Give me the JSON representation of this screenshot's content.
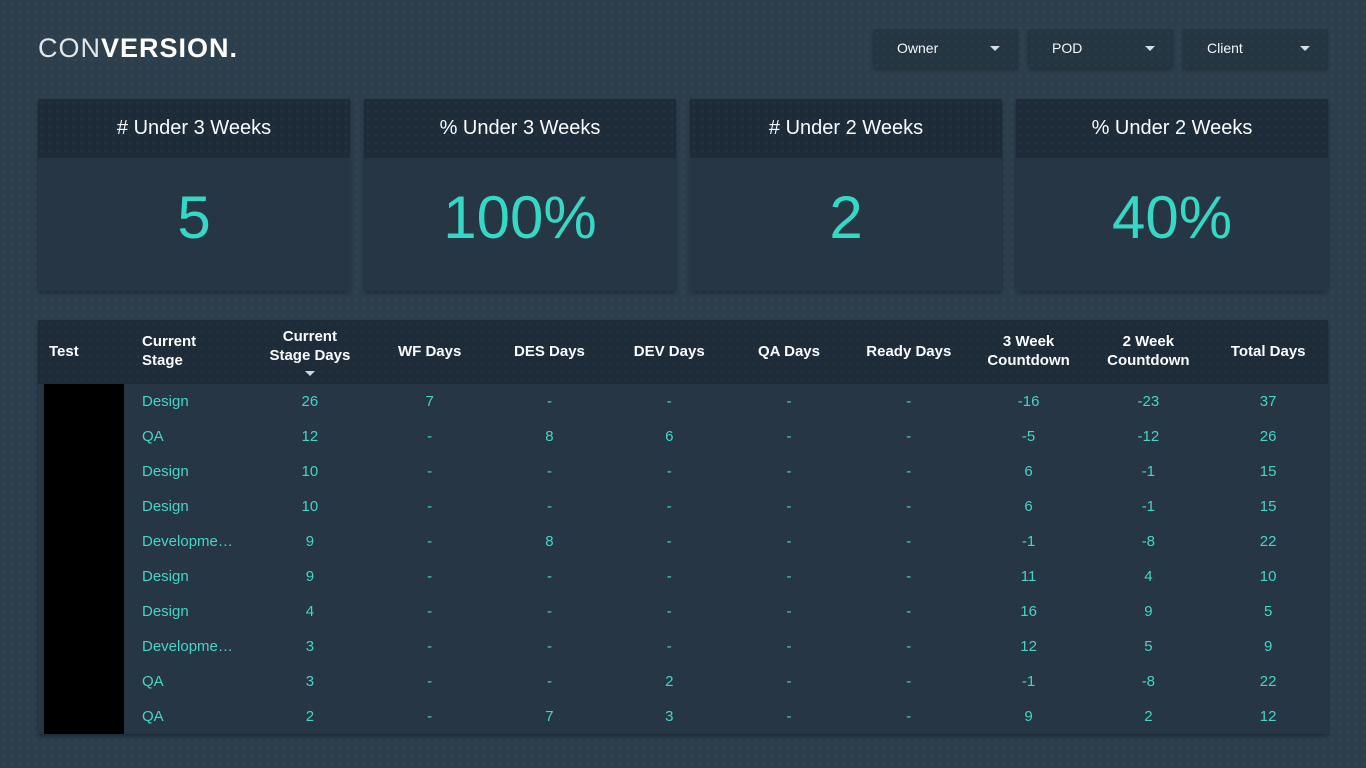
{
  "brand": {
    "light": "CON",
    "bold": "VERSION."
  },
  "filters": [
    {
      "label": "Owner"
    },
    {
      "label": "POD"
    },
    {
      "label": "Client"
    }
  ],
  "kpis": [
    {
      "title": "# Under 3 Weeks",
      "value": "5"
    },
    {
      "title": "% Under 3 Weeks",
      "value": "100%"
    },
    {
      "title": "# Under 2 Weeks",
      "value": "2"
    },
    {
      "title": "% Under 2 Weeks",
      "value": "40%"
    }
  ],
  "table": {
    "columns": [
      {
        "label": "Test",
        "key": "test"
      },
      {
        "label": "Current\nStage",
        "key": "current_stage"
      },
      {
        "label": "Current\nStage Days",
        "key": "current_stage_days"
      },
      {
        "label": "WF Days",
        "key": "wf_days"
      },
      {
        "label": "DES Days",
        "key": "des_days"
      },
      {
        "label": "DEV Days",
        "key": "dev_days"
      },
      {
        "label": "QA Days",
        "key": "qa_days"
      },
      {
        "label": "Ready Days",
        "key": "ready_days"
      },
      {
        "label": "3 Week\nCountdown",
        "key": "three_week_countdown"
      },
      {
        "label": "2 Week\nCountdown",
        "key": "two_week_countdown"
      },
      {
        "label": "Total Days",
        "key": "total_days"
      }
    ],
    "sort": {
      "column": "Current Stage Days",
      "column_index": 2,
      "direction": "desc"
    },
    "rows": [
      {
        "cells": [
          "",
          "Design",
          "26",
          "7",
          "-",
          "-",
          "-",
          "-",
          "-16",
          "-23",
          "37"
        ]
      },
      {
        "cells": [
          "",
          "QA",
          "12",
          "-",
          "8",
          "6",
          "-",
          "-",
          "-5",
          "-12",
          "26"
        ]
      },
      {
        "cells": [
          "",
          "Design",
          "10",
          "-",
          "-",
          "-",
          "-",
          "-",
          "6",
          "-1",
          "15"
        ]
      },
      {
        "cells": [
          "",
          "Design",
          "10",
          "-",
          "-",
          "-",
          "-",
          "-",
          "6",
          "-1",
          "15"
        ]
      },
      {
        "cells": [
          "",
          "Developme…",
          "9",
          "-",
          "8",
          "-",
          "-",
          "-",
          "-1",
          "-8",
          "22"
        ]
      },
      {
        "cells": [
          "",
          "Design",
          "9",
          "-",
          "-",
          "-",
          "-",
          "-",
          "11",
          "4",
          "10"
        ]
      },
      {
        "cells": [
          "",
          "Design",
          "4",
          "-",
          "-",
          "-",
          "-",
          "-",
          "16",
          "9",
          "5"
        ]
      },
      {
        "cells": [
          "",
          "Developme…",
          "3",
          "-",
          "-",
          "-",
          "-",
          "-",
          "12",
          "5",
          "9"
        ]
      },
      {
        "cells": [
          "",
          "QA",
          "3",
          "-",
          "-",
          "2",
          "-",
          "-",
          "-1",
          "-8",
          "22"
        ]
      },
      {
        "cells": [
          "",
          "QA",
          "2",
          "-",
          "7",
          "3",
          "-",
          "-",
          "9",
          "2",
          "12"
        ]
      }
    ]
  },
  "colors": {
    "accent_teal": "#35d8c5",
    "page_bg": "#2d3e4d",
    "panel_bg": "#263644",
    "header_strip_bg": "#1e2c3a",
    "redaction": "#000000"
  }
}
